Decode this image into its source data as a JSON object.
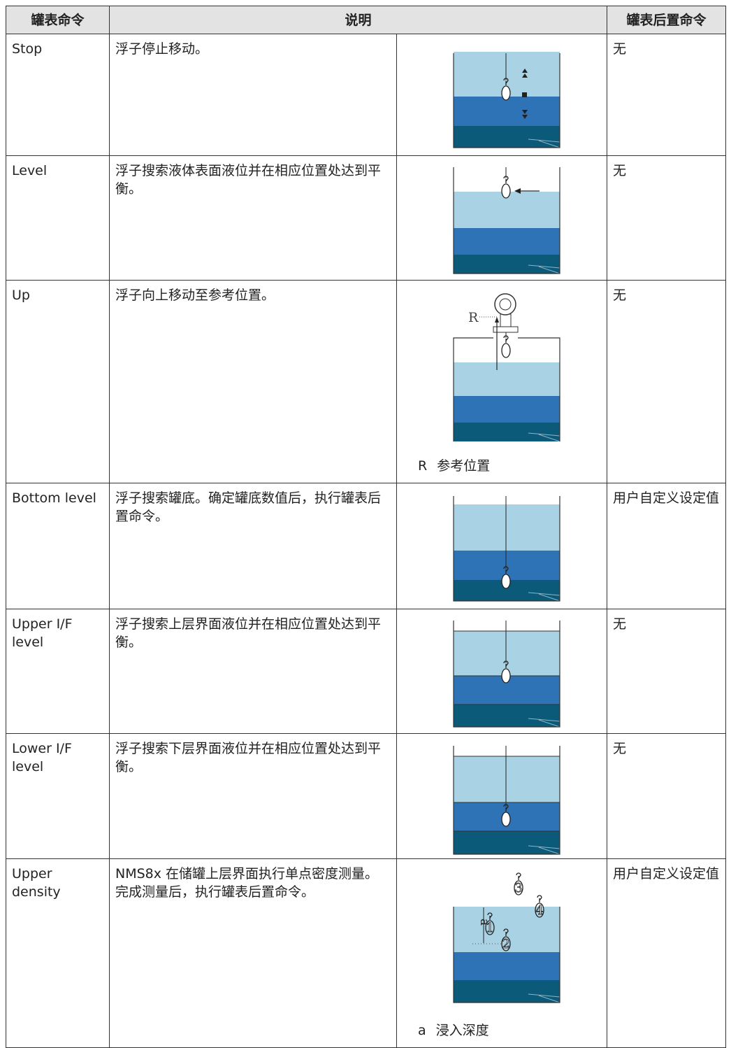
{
  "header": {
    "columns": [
      "罐表命令",
      "说明",
      "罐表后置命令"
    ]
  },
  "table": {
    "rows": [
      {
        "command": "Stop",
        "description": "浮子停止移动。",
        "post_command": "无"
      },
      {
        "command": "Level",
        "description": "浮子搜索液体表面液位并在相应位置处达到平衡。",
        "post_command": "无"
      },
      {
        "command": "Up",
        "description": "浮子向上移动至参考位置。",
        "post_command": "无",
        "figure_labels": [
          "R"
        ],
        "legend": {
          "key": "R",
          "text": "参考位置"
        }
      },
      {
        "command": "Bottom level",
        "description": "浮子搜索罐底。确定罐底数值后，执行罐表后置命令。",
        "post_command": "用户自定义设定值"
      },
      {
        "command": "Upper I/F level",
        "description": "浮子搜索上层界面液位并在相应位置处达到平衡。",
        "post_command": "无"
      },
      {
        "command": "Lower I/F level",
        "description": "浮子搜索下层界面液位并在相应位置处达到平衡。",
        "post_command": "无"
      },
      {
        "command": "Upper density",
        "description": "NMS8x 在储罐上层界面执行单点密度测量。完成测量后，执行罐表后置命令。",
        "post_command": "用户自定义设定值",
        "figure_labels": [
          "a",
          "1",
          "2",
          "3",
          "4"
        ],
        "legend": {
          "key": "a",
          "text": "浸入深度"
        }
      }
    ]
  }
}
